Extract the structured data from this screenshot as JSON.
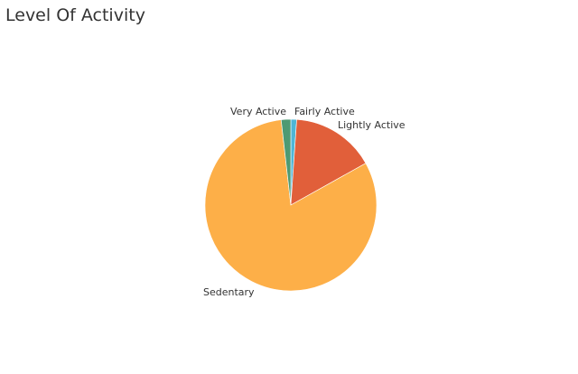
{
  "chart_data": {
    "type": "pie",
    "title": "Level Of Activity",
    "slices": [
      {
        "label": "Fairly Active",
        "value": 1.1,
        "color": "#4FB6D6"
      },
      {
        "label": "Lightly Active",
        "value": 15.8,
        "color": "#E15F3A"
      },
      {
        "label": "Sedentary",
        "value": 81.3,
        "color": "#FDAF48"
      },
      {
        "label": "Very Active",
        "value": 1.8,
        "color": "#4E9A73"
      }
    ],
    "start_angle_deg": 0,
    "direction": "clockwise",
    "legend": "none"
  }
}
